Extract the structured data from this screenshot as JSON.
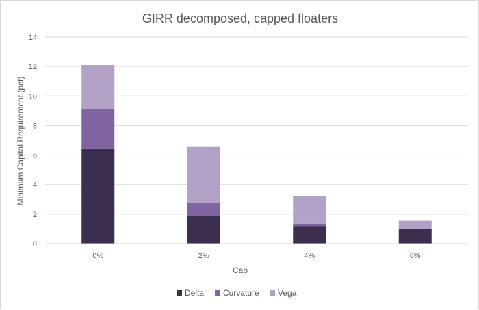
{
  "chart_data": {
    "type": "bar",
    "stacked": true,
    "title": "GIRR decomposed, capped floaters",
    "xlabel": "Cap",
    "ylabel": "Minimum Capital Requirement (pct)",
    "categories": [
      "0%",
      "2%",
      "4%",
      "6%"
    ],
    "series": [
      {
        "name": "Delta",
        "color": "#3b2e4f",
        "values": [
          6.4,
          1.9,
          1.2,
          1.0
        ]
      },
      {
        "name": "Curvature",
        "color": "#8064a2",
        "values": [
          2.7,
          0.85,
          0.15,
          0.0
        ]
      },
      {
        "name": "Vega",
        "color": "#b3a2c7",
        "values": [
          3.0,
          3.8,
          1.85,
          0.55
        ]
      }
    ],
    "ylim": [
      0,
      14
    ],
    "yticks": [
      0,
      2,
      4,
      6,
      8,
      10,
      12,
      14
    ],
    "grid": true,
    "legend_position": "bottom"
  }
}
